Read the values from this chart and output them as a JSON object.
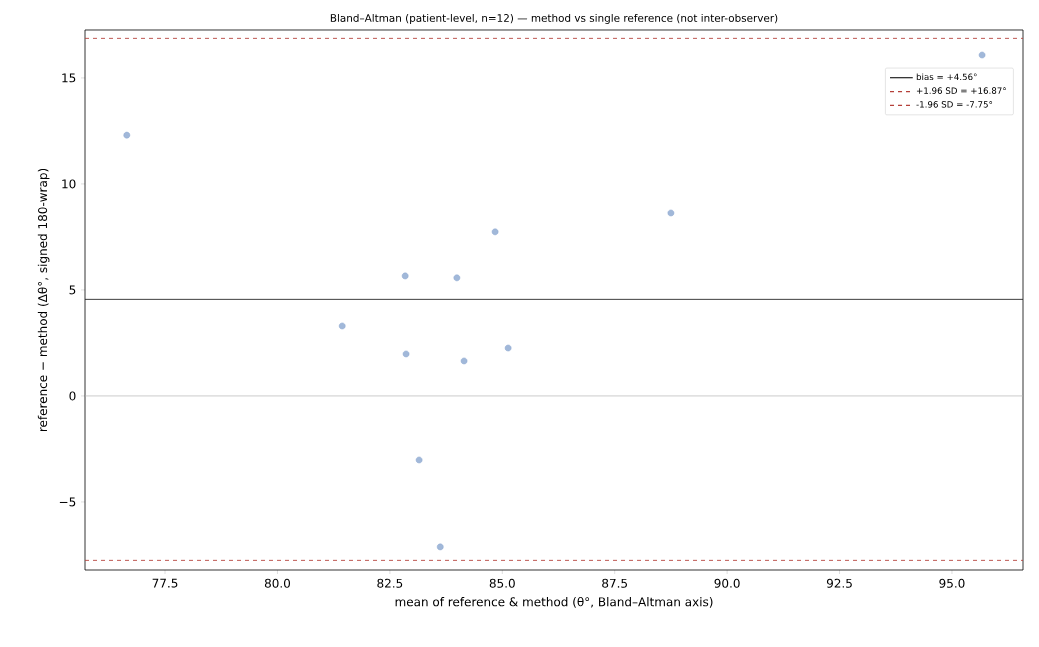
{
  "chart_data": {
    "type": "scatter",
    "title": "Bland–Altman (patient-level, n=12) — method vs single reference (not inter-observer)",
    "xlabel": "mean of reference & method  (θ°, Bland–Altman axis)",
    "ylabel": "reference − method  (Δθ°, signed 180-wrap)",
    "x": [
      76.65,
      81.44,
      82.84,
      82.86,
      83.15,
      83.62,
      83.99,
      84.15,
      84.84,
      85.13,
      88.75,
      95.67
    ],
    "series": [
      {
        "color": "#8aa6cf",
        "values": [
          12.3,
          3.3,
          5.66,
          1.98,
          -3.02,
          -7.12,
          5.57,
          1.65,
          7.74,
          2.26,
          8.63,
          16.08
        ]
      }
    ],
    "legend": "top right",
    "xlim": [
      75.72,
      96.58
    ],
    "ylim": [
      -8.21,
      17.26
    ],
    "xticks": [
      {
        "value": 77.5,
        "label": "77.5"
      },
      {
        "value": 80,
        "label": "80.0"
      },
      {
        "value": 82.5,
        "label": "82.5"
      },
      {
        "value": 85,
        "label": "85.0"
      },
      {
        "value": 87.5,
        "label": "87.5"
      },
      {
        "value": 90,
        "label": "90.0"
      },
      {
        "value": 92.5,
        "label": "92.5"
      },
      {
        "value": 95,
        "label": "95.0"
      }
    ],
    "yticks": [
      {
        "value": -5,
        "label": "−5"
      },
      0,
      5,
      10,
      15
    ],
    "ref_lines": [
      {
        "axis": "y",
        "value": 0,
        "color": "#b0b0b0",
        "line_style": "solid"
      },
      {
        "axis": "y",
        "value": 4.56,
        "label": "bias = +4.56°",
        "color": "#222222",
        "line_style": "solid"
      },
      {
        "axis": "y",
        "value": 16.87,
        "label": "+1.96 SD = +16.87°",
        "color": "#b5403a",
        "line_style": "dashed"
      },
      {
        "axis": "y",
        "value": -7.75,
        "label": "-1.96 SD = -7.75°",
        "color": "#b5403a",
        "line_style": "dashed"
      }
    ]
  }
}
